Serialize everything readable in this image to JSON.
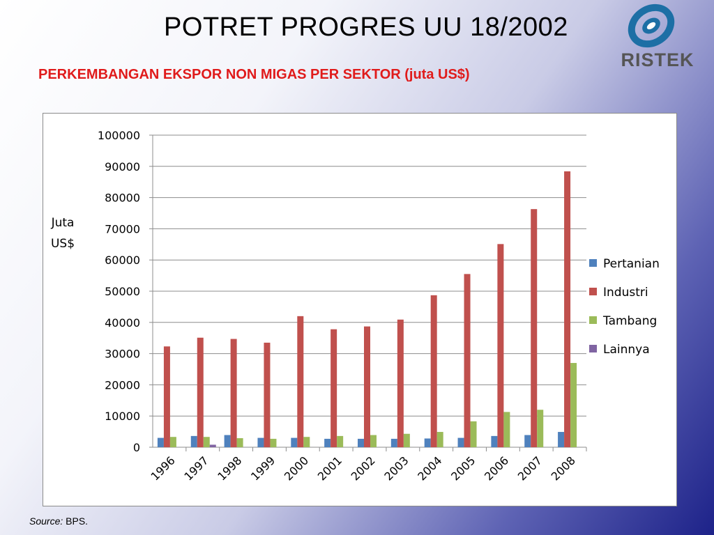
{
  "slide": {
    "title": "POTRET PROGRES UU 18/2002",
    "subtitle": "PERKEMBANGAN EKSPOR NON MIGAS PER SEKTOR (juta US$)",
    "logo_text": "RISTEK",
    "source_label": "Source:",
    "source_value": " BPS."
  },
  "colors": {
    "Pertanian": "#4f81bd",
    "Industri": "#c0504d",
    "Tambang": "#9bbb59",
    "Lainnya": "#8064a2",
    "logo_blue": "#1d6fa5",
    "subtitle_red": "#e01b1b"
  },
  "chart_data": {
    "type": "bar",
    "title": "",
    "xlabel": "",
    "ylabel": "Juta US$",
    "ylabel_lines": [
      "Juta",
      "US$"
    ],
    "ylim": [
      0,
      100000
    ],
    "yticks": [
      0,
      10000,
      20000,
      30000,
      40000,
      50000,
      60000,
      70000,
      80000,
      90000,
      100000
    ],
    "grid": true,
    "legend_position": "right",
    "categories": [
      "1996",
      "1997",
      "1998",
      "1999",
      "2000",
      "2001",
      "2002",
      "2003",
      "2004",
      "2005",
      "2006",
      "2007",
      "2008"
    ],
    "series": [
      {
        "name": "Pertanian",
        "values": [
          3000,
          3600,
          3900,
          3000,
          3000,
          2700,
          2700,
          2700,
          2800,
          3000,
          3600,
          3900,
          4900
        ]
      },
      {
        "name": "Industri",
        "values": [
          32300,
          35100,
          34700,
          33500,
          42000,
          37800,
          38700,
          40900,
          48700,
          55500,
          65100,
          76300,
          88400
        ]
      },
      {
        "name": "Tambang",
        "values": [
          3300,
          3300,
          2900,
          2700,
          3300,
          3600,
          3900,
          4300,
          4900,
          8300,
          11300,
          12000,
          27000
        ]
      },
      {
        "name": "Lainnya",
        "values": [
          0,
          800,
          0,
          0,
          0,
          0,
          0,
          0,
          0,
          0,
          0,
          0,
          0
        ]
      }
    ]
  }
}
